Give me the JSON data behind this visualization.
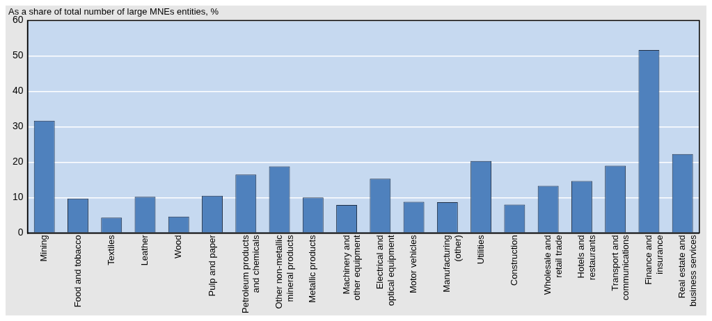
{
  "chart_data": {
    "type": "bar",
    "ylabel": "As a share of total number of large MNEs entities, %",
    "categories": [
      "Mining",
      "Food and tobacco",
      "Textiles",
      "Leather",
      "Wood",
      "Pulp and paper",
      "Petroleum products and chemicals",
      "Other non-metallic mineral products",
      "Metallic products",
      "Machinery and other equipment",
      "Electrical and optical equipment",
      "Motor vehicles",
      "Manufacturing (other)",
      "Utilities",
      "Construction",
      "Wholesale and retail trade",
      "Hotels and restaurants",
      "Transport and communications",
      "Finance and insurance",
      "Real estate and business services"
    ],
    "values": [
      31.7,
      9.7,
      4.3,
      10.2,
      4.6,
      10.5,
      16.5,
      18.8,
      10.0,
      7.9,
      15.3,
      8.8,
      8.7,
      20.3,
      8.0,
      13.3,
      14.7,
      19.0,
      51.7,
      22.3
    ],
    "color": "#4f81bd",
    "ylim": [
      0,
      60
    ],
    "yticks": [
      0,
      10,
      20,
      30,
      40,
      50,
      60
    ],
    "grid": "y"
  }
}
